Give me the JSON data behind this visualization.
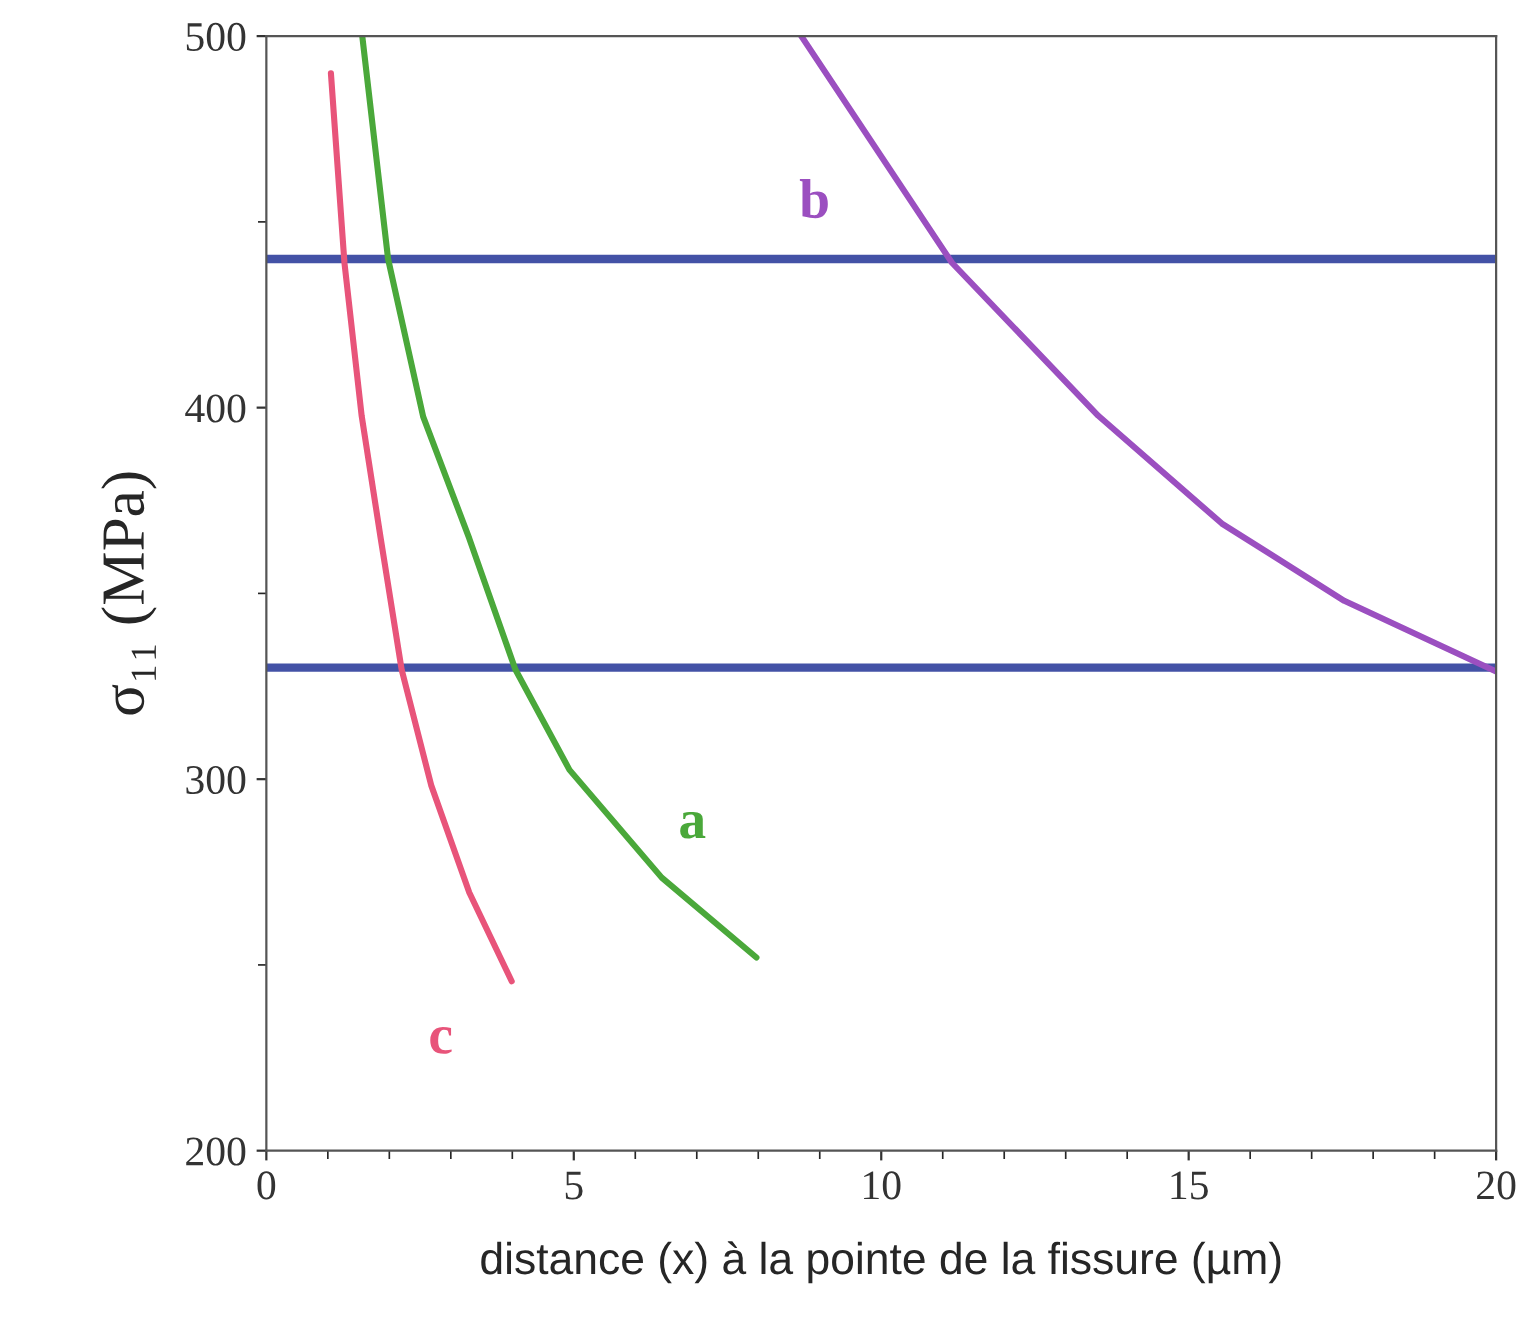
{
  "chart_data": {
    "type": "line",
    "xlabel": "distance (x) à la pointe de la fissure (µm)",
    "ylabel": "σ₁₁ (MPa)",
    "xlim": [
      0,
      20
    ],
    "xticks": [
      0,
      5,
      10,
      15,
      20
    ],
    "ylim": [
      200,
      500
    ],
    "yticks": [
      200,
      300,
      400,
      500
    ],
    "grid": false,
    "legend": false,
    "marker": "none",
    "line_style": "solid",
    "series": [
      {
        "name": "a",
        "color": "#4aa83a",
        "x": [
          1.56,
          1.98,
          2.55,
          3.3,
          4.05,
          4.93,
          6.43,
          7.97
        ],
        "values": [
          500,
          440,
          397.6,
          364.8,
          329.5,
          302.5,
          273.5,
          252
        ]
      },
      {
        "name": "b",
        "color": "#9b4fc0",
        "x": [
          8.7,
          11.15,
          13.53,
          15.54,
          17.53,
          20
        ],
        "values": [
          500,
          439,
          397.8,
          368.8,
          348,
          329
        ]
      },
      {
        "name": "c",
        "color": "#e8547a",
        "x": [
          1.05,
          1.27,
          1.55,
          1.86,
          2.2,
          2.68,
          3.3,
          3.99
        ],
        "values": [
          490,
          439,
          397.8,
          364.8,
          329.5,
          298.4,
          269.5,
          245.6
        ]
      }
    ],
    "ref_lines": [
      {
        "axis": "y",
        "value": 440,
        "color": "#4352a6",
        "line_style": "solid"
      },
      {
        "axis": "y",
        "value": 330,
        "color": "#4352a6",
        "line_style": "solid"
      }
    ]
  }
}
